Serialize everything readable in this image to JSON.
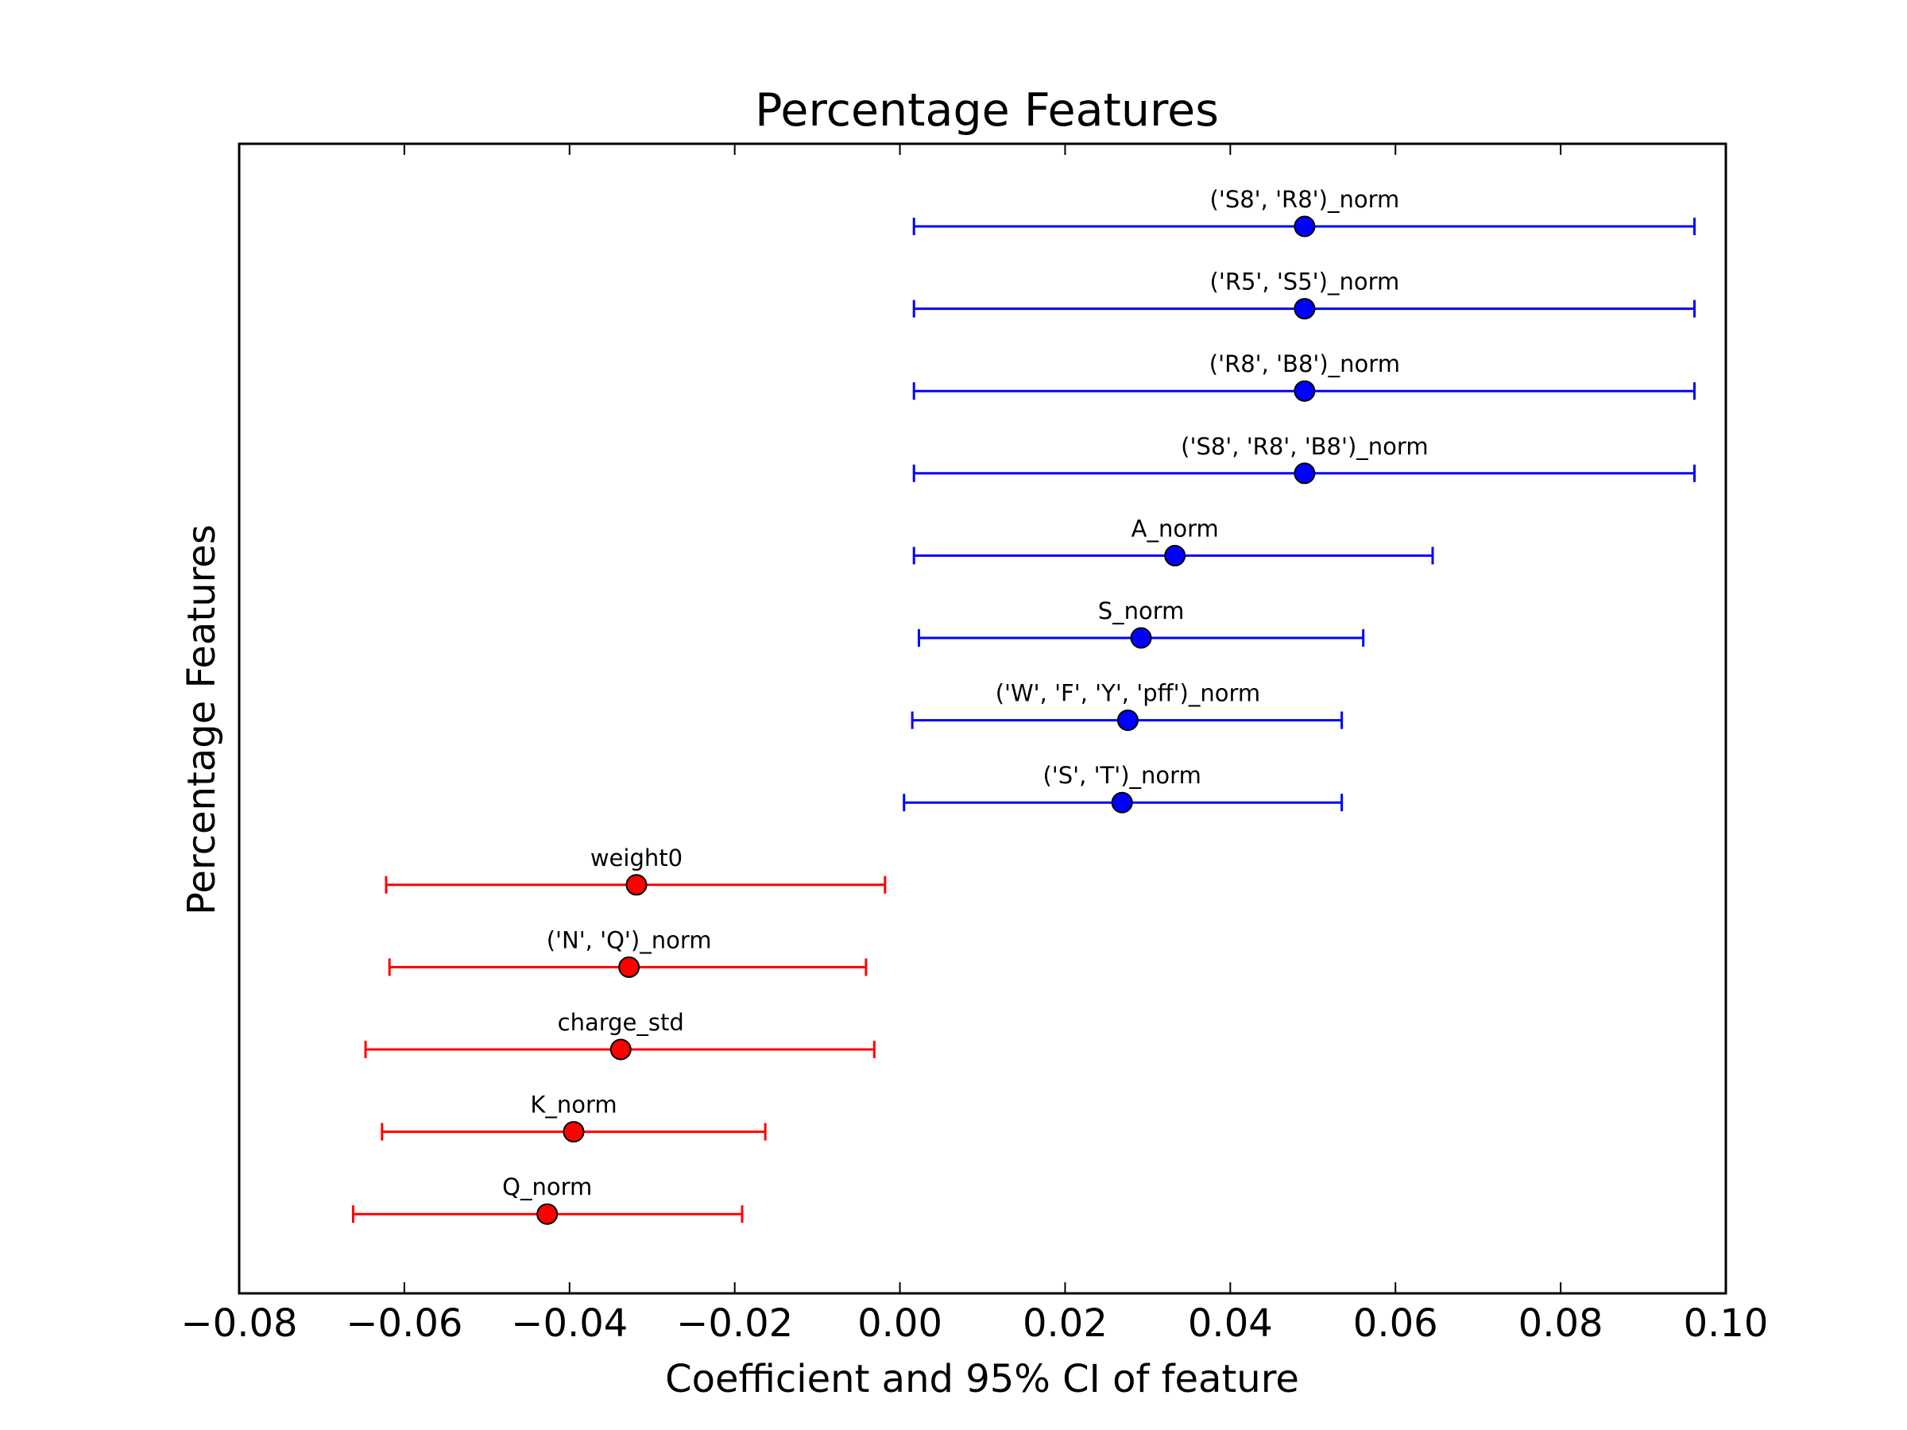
{
  "chart_data": {
    "type": "errorbar",
    "title": "Percentage Features",
    "xlabel": "Coefficient and 95% CI of feature",
    "ylabel": "Percentage Features",
    "xlim": [
      -0.08,
      0.1
    ],
    "xticks": [
      -0.08,
      -0.06,
      -0.04,
      -0.02,
      0.0,
      0.02,
      0.04,
      0.06,
      0.08,
      0.1
    ],
    "xtick_labels": [
      "−0.08",
      "−0.06",
      "−0.04",
      "−0.02",
      "0.00",
      "0.02",
      "0.04",
      "0.06",
      "0.08",
      "0.10"
    ],
    "grid": false,
    "colors": {
      "positive": "#0000ff",
      "negative": "#ff0000"
    },
    "points": [
      {
        "label": "('S8', 'R8')_norm",
        "value": 0.049,
        "ci_low": 0.0017,
        "ci_high": 0.0962,
        "sign": "positive"
      },
      {
        "label": "('R5', 'S5')_norm",
        "value": 0.049,
        "ci_low": 0.0017,
        "ci_high": 0.0962,
        "sign": "positive"
      },
      {
        "label": "('R8', 'B8')_norm",
        "value": 0.049,
        "ci_low": 0.0017,
        "ci_high": 0.0962,
        "sign": "positive"
      },
      {
        "label": "('S8', 'R8', 'B8')_norm",
        "value": 0.049,
        "ci_low": 0.0017,
        "ci_high": 0.0962,
        "sign": "positive"
      },
      {
        "label": "A_norm",
        "value": 0.0333,
        "ci_low": 0.0017,
        "ci_high": 0.0645,
        "sign": "positive"
      },
      {
        "label": "S_norm",
        "value": 0.0292,
        "ci_low": 0.0023,
        "ci_high": 0.0561,
        "sign": "positive"
      },
      {
        "label": "('W', 'F', 'Y', 'pff')_norm",
        "value": 0.0276,
        "ci_low": 0.0015,
        "ci_high": 0.0535,
        "sign": "positive"
      },
      {
        "label": "('S', 'T')_norm",
        "value": 0.0269,
        "ci_low": 0.0005,
        "ci_high": 0.0535,
        "sign": "positive"
      },
      {
        "label": "weight0",
        "value": -0.0319,
        "ci_low": -0.0622,
        "ci_high": -0.0018,
        "sign": "negative"
      },
      {
        "label": "('N', 'Q')_norm",
        "value": -0.0328,
        "ci_low": -0.0618,
        "ci_high": -0.0041,
        "sign": "negative"
      },
      {
        "label": "charge_std",
        "value": -0.0338,
        "ci_low": -0.0647,
        "ci_high": -0.0031,
        "sign": "negative"
      },
      {
        "label": "K_norm",
        "value": -0.0395,
        "ci_low": -0.0627,
        "ci_high": -0.0163,
        "sign": "negative"
      },
      {
        "label": "Q_norm",
        "value": -0.0427,
        "ci_low": -0.0662,
        "ci_high": -0.0191,
        "sign": "negative"
      }
    ]
  }
}
